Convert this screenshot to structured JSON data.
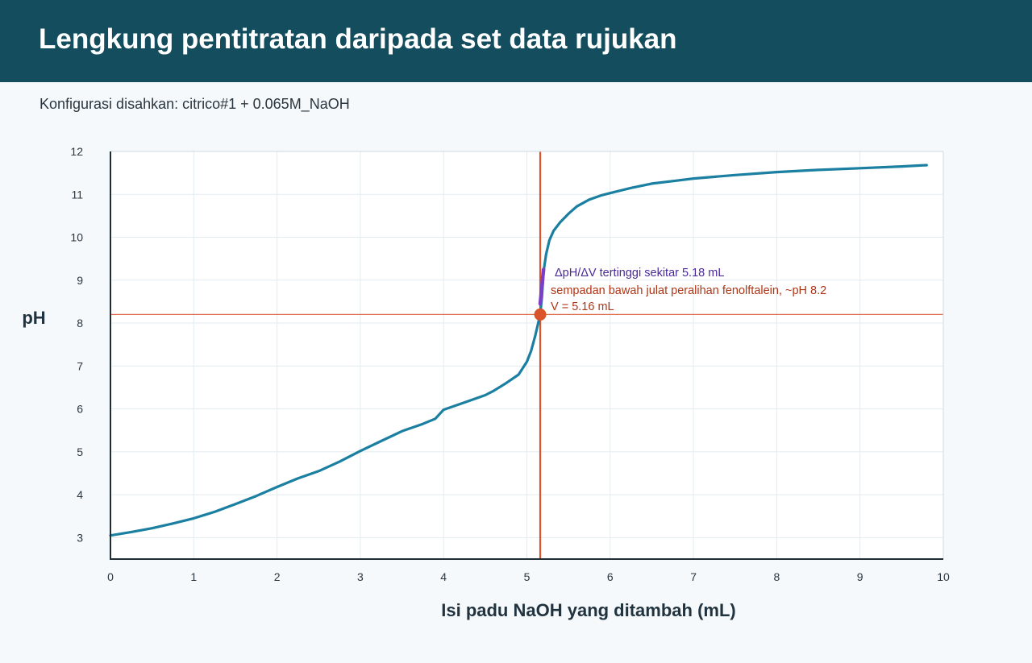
{
  "header": {
    "title": "Lengkung pentitratan daripada set data rujukan",
    "subtitle": "Konfigurasi disahkan: citrico#1 + 0.065M_NaOH"
  },
  "chart_data": {
    "type": "line",
    "xlabel": "Isi padu NaOH yang ditambah (mL)",
    "ylabel": "pH",
    "xlim": [
      0,
      10
    ],
    "ylim": [
      2.5,
      12
    ],
    "xticks": [
      "0",
      "1",
      "2",
      "3",
      "4",
      "5",
      "6",
      "7",
      "8",
      "9",
      "10"
    ],
    "yticks": [
      "3",
      "4",
      "5",
      "6",
      "7",
      "8",
      "9",
      "10",
      "11",
      "12"
    ],
    "grid": true,
    "series": [
      {
        "color": "#1a7fa0",
        "x": [
          0.0,
          0.25,
          0.5,
          0.75,
          1.0,
          1.25,
          1.5,
          1.75,
          2.0,
          2.25,
          2.5,
          2.75,
          3.0,
          3.25,
          3.5,
          3.75,
          3.9,
          4.0,
          4.25,
          4.5,
          4.6,
          4.75,
          4.9,
          5.0,
          5.05,
          5.1,
          5.13,
          5.16,
          5.18,
          5.2,
          5.23,
          5.27,
          5.32,
          5.4,
          5.5,
          5.6,
          5.75,
          5.9,
          6.0,
          6.25,
          6.5,
          6.75,
          7.0,
          7.5,
          8.0,
          8.5,
          9.0,
          9.5,
          9.8
        ],
        "y": [
          3.05,
          3.13,
          3.22,
          3.33,
          3.45,
          3.6,
          3.78,
          3.97,
          4.18,
          4.38,
          4.55,
          4.77,
          5.02,
          5.25,
          5.48,
          5.65,
          5.77,
          5.98,
          6.15,
          6.32,
          6.42,
          6.6,
          6.8,
          7.1,
          7.35,
          7.7,
          7.95,
          8.2,
          8.6,
          9.2,
          9.6,
          9.93,
          10.15,
          10.35,
          10.55,
          10.72,
          10.88,
          10.98,
          11.03,
          11.15,
          11.25,
          11.31,
          11.37,
          11.45,
          11.52,
          11.57,
          11.61,
          11.65,
          11.68
        ]
      },
      {
        "color": "#7b3fc7",
        "x": [
          5.16,
          5.17,
          5.18,
          5.19,
          5.2
        ],
        "y": [
          8.45,
          8.65,
          8.85,
          9.05,
          9.25
        ]
      }
    ],
    "reference_lines": {
      "vertical_x": 5.16,
      "horizontal_y": 8.2,
      "color": "#d9532b"
    },
    "marker": {
      "x": 5.16,
      "y": 8.2,
      "color": "#d9532b"
    },
    "annotations": [
      {
        "text": "ΔpH/ΔV tertinggi sekitar 5.18 mL",
        "color": "#4a2a99"
      },
      {
        "text": "sempadan bawah julat peralihan fenolftalein, ~pH 8.2",
        "color": "#b03515"
      },
      {
        "text": "V = 5.16 mL",
        "color": "#b03515"
      }
    ]
  }
}
